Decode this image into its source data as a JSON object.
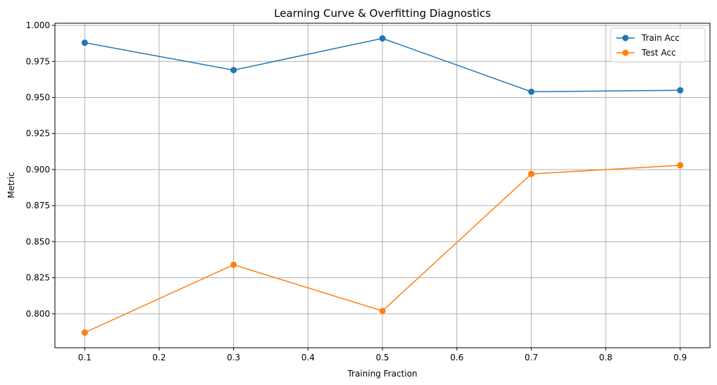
{
  "chart_data": {
    "type": "line",
    "title": "Learning Curve & Overfitting Diagnostics",
    "xlabel": "Training Fraction",
    "ylabel": "Metric",
    "x": [
      0.1,
      0.3,
      0.5,
      0.7,
      0.9
    ],
    "xlim": [
      0.06,
      0.94
    ],
    "ylim": [
      0.7765,
      1.0015
    ],
    "xticks": [
      "0.1",
      "0.2",
      "0.3",
      "0.4",
      "0.5",
      "0.6",
      "0.7",
      "0.8",
      "0.9"
    ],
    "xtick_values": [
      0.1,
      0.2,
      0.3,
      0.4,
      0.5,
      0.6,
      0.7,
      0.8,
      0.9
    ],
    "yticks": [
      "0.800",
      "0.825",
      "0.850",
      "0.875",
      "0.900",
      "0.925",
      "0.950",
      "0.975",
      "1.000"
    ],
    "ytick_values": [
      0.8,
      0.825,
      0.85,
      0.875,
      0.9,
      0.925,
      0.95,
      0.975,
      1.0
    ],
    "grid": true,
    "legend_position": "top-right",
    "series": [
      {
        "name": "Train Acc",
        "color": "#1f77b4",
        "marker": "circle",
        "values": [
          0.988,
          0.969,
          0.991,
          0.954,
          0.955
        ]
      },
      {
        "name": "Test Acc",
        "color": "#ff7f0e",
        "marker": "circle",
        "values": [
          0.787,
          0.834,
          0.802,
          0.897,
          0.903
        ]
      }
    ]
  }
}
